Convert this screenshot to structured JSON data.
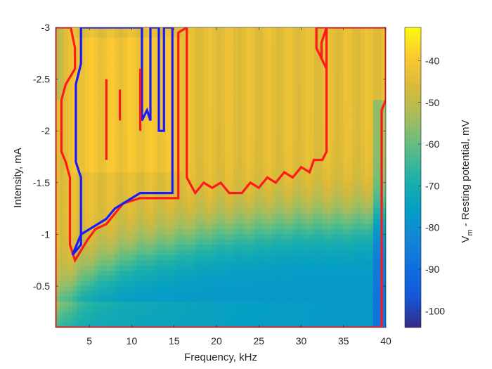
{
  "chart_data": {
    "type": "heatmap",
    "title": "",
    "xlabel": "Frequency, kHz",
    "ylabel": "Intensity, mA",
    "colorbar_label": "V_m - Resting potential, mV",
    "colorbar_label_main": "V",
    "colorbar_label_sub": "m",
    "colorbar_label_rest": " - Resting potential, mV",
    "xlim": [
      1,
      40
    ],
    "ylim": [
      -0.1,
      -3
    ],
    "y_axis_reversed": true,
    "clim": [
      -104,
      -32
    ],
    "x_ticks": [
      5,
      10,
      15,
      20,
      25,
      30,
      35,
      40
    ],
    "x_tick_labels": [
      "5",
      "10",
      "15",
      "20",
      "25",
      "30",
      "35",
      "40"
    ],
    "y_ticks": [
      -3,
      -2.5,
      -2,
      -1.5,
      -1,
      -0.5
    ],
    "y_tick_labels": [
      "-3",
      "-2.5",
      "-2",
      "-1.5",
      "-1",
      "-0.5"
    ],
    "colorbar_ticks": [
      -40,
      -50,
      -60,
      -70,
      -80,
      -90,
      -100
    ],
    "colorbar_tick_labels": [
      "-40",
      "-50",
      "-60",
      "-70",
      "-80",
      "-90",
      "-100"
    ],
    "colormap": "parula",
    "field_summary": {
      "depolarized_region_value_mV": -44,
      "hyperpolarized_region_value_mV": -78,
      "transition_boundary": [
        {
          "freq": 1,
          "intensity": -0.3
        },
        {
          "freq": 5,
          "intensity": -0.6
        },
        {
          "freq": 10,
          "intensity": -0.8
        },
        {
          "freq": 15,
          "intensity": -0.9
        },
        {
          "freq": 20,
          "intensity": -1.0
        },
        {
          "freq": 25,
          "intensity": -1.05
        },
        {
          "freq": 30,
          "intensity": -1.1
        },
        {
          "freq": 35,
          "intensity": -1.1
        },
        {
          "freq": 40,
          "intensity": -1.15
        }
      ]
    },
    "contours": [
      {
        "name": "",
        "color": "#ff1a1a",
        "points": [
          [
            1,
            -3
          ],
          [
            2.8,
            -3
          ],
          [
            3.3,
            -2.8
          ],
          [
            3.3,
            -2.6
          ],
          [
            2.2,
            -2.45
          ],
          [
            1.7,
            -2.3
          ],
          [
            1.7,
            -1.8
          ],
          [
            2.2,
            -1.7
          ],
          [
            2.7,
            -1.55
          ],
          [
            2.7,
            -0.9
          ],
          [
            3.3,
            -0.75
          ],
          [
            4.8,
            -0.95
          ],
          [
            5.7,
            -1.05
          ],
          [
            7,
            -1.1
          ],
          [
            8,
            -1.2
          ],
          [
            9,
            -1.3
          ],
          [
            11,
            -1.35
          ],
          [
            15.5,
            -1.35
          ],
          [
            15.5,
            -2.95
          ],
          [
            16.5,
            -3
          ],
          [
            16.5,
            -1.55
          ],
          [
            17.5,
            -1.4
          ],
          [
            18.5,
            -1.5
          ],
          [
            19.5,
            -1.45
          ],
          [
            20.5,
            -1.5
          ],
          [
            21.5,
            -1.4
          ],
          [
            23,
            -1.4
          ],
          [
            24,
            -1.5
          ],
          [
            25,
            -1.45
          ],
          [
            26,
            -1.55
          ],
          [
            27,
            -1.5
          ],
          [
            28,
            -1.6
          ],
          [
            29,
            -1.55
          ],
          [
            30,
            -1.65
          ],
          [
            31,
            -1.6
          ],
          [
            31.5,
            -1.72
          ],
          [
            32.5,
            -1.72
          ],
          [
            33,
            -1.8
          ],
          [
            33,
            -2.6
          ],
          [
            32.4,
            -2.7
          ],
          [
            32.4,
            -2.85
          ],
          [
            33,
            -3
          ],
          [
            33,
            -2.6
          ],
          [
            31.8,
            -2.8
          ],
          [
            31.8,
            -3
          ],
          [
            35,
            -3
          ],
          [
            40,
            -3
          ],
          [
            40,
            -2.3
          ],
          [
            39.5,
            -2.2
          ],
          [
            39.5,
            -0.1
          ],
          [
            1,
            -0.1
          ],
          [
            1,
            -3
          ]
        ]
      },
      {
        "name": "",
        "color": "#1a1aff",
        "points": [
          [
            3,
            -0.8
          ],
          [
            4,
            -1.0
          ],
          [
            5,
            -1.05
          ],
          [
            6,
            -1.1
          ],
          [
            7,
            -1.15
          ],
          [
            8,
            -1.25
          ],
          [
            9,
            -1.3
          ],
          [
            10,
            -1.35
          ],
          [
            11,
            -1.4
          ],
          [
            14.8,
            -1.4
          ],
          [
            14.8,
            -3
          ],
          [
            13.8,
            -3
          ],
          [
            13.8,
            -2.0
          ],
          [
            13.2,
            -2.0
          ],
          [
            13.2,
            -3
          ],
          [
            12.2,
            -3
          ],
          [
            12.2,
            -2.1
          ],
          [
            11.8,
            -2.2
          ],
          [
            11.2,
            -2.1
          ],
          [
            11.2,
            -3
          ],
          [
            4,
            -3
          ],
          [
            4,
            -2.65
          ],
          [
            3.4,
            -2.45
          ],
          [
            3.4,
            -1.7
          ],
          [
            4,
            -1.55
          ],
          [
            4,
            -0.9
          ],
          [
            3,
            -0.8
          ]
        ]
      }
    ],
    "red_bars": [
      {
        "freq": 7,
        "intensity_from": -1.72,
        "intensity_to": -2.5
      },
      {
        "freq": 8.6,
        "intensity_from": -2.1,
        "intensity_to": -2.4
      },
      {
        "freq": 11,
        "intensity_from": -2.0,
        "intensity_to": -2.6
      }
    ]
  }
}
